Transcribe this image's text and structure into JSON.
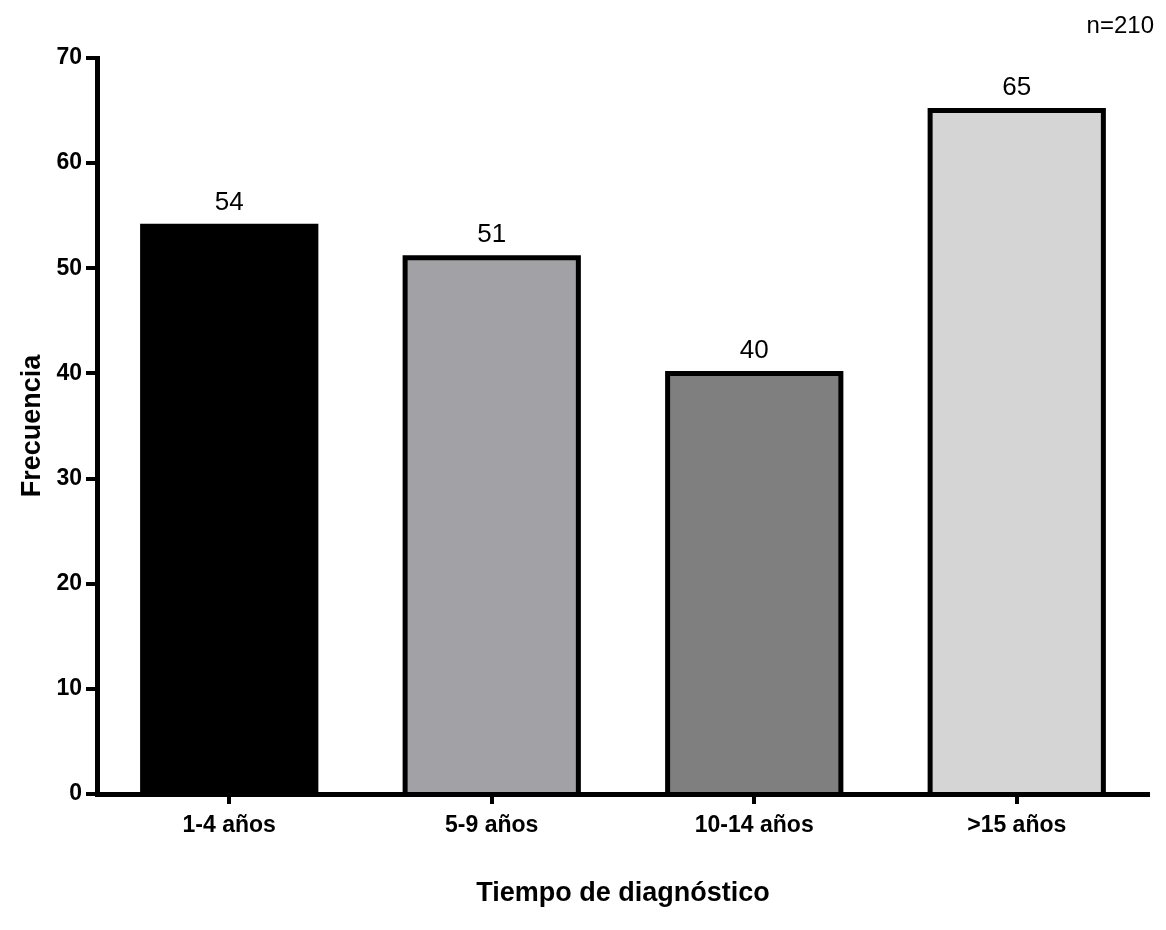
{
  "chart_data": {
    "type": "bar",
    "xlabel": "Tiempo de diagnóstico",
    "ylabel": "Frecuencia",
    "categories": [
      "1-4 años",
      "5-9 años",
      "10-14 años",
      ">15 años"
    ],
    "values": [
      54,
      51,
      40,
      65
    ],
    "colors": [
      "#000000",
      "#a2a1a6",
      "#7f7f7f",
      "#d5d5d5"
    ],
    "ylim": [
      0,
      70
    ],
    "yticks": [
      0,
      10,
      20,
      30,
      40,
      50,
      60,
      70
    ],
    "grid": false,
    "legend": false,
    "data_labels": true,
    "annotations": [
      "n=210"
    ]
  }
}
